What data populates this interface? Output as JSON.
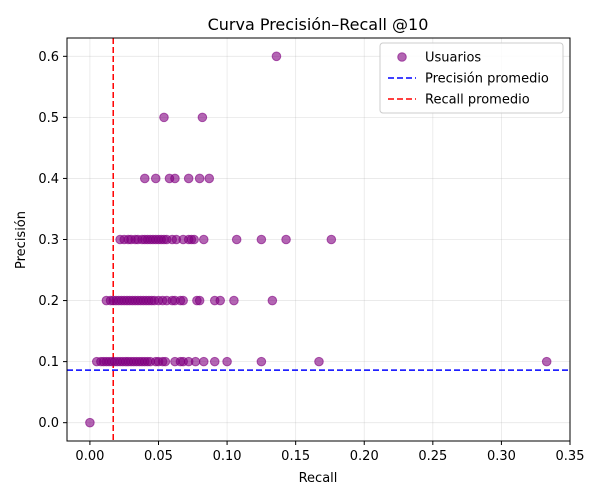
{
  "chart_data": {
    "type": "scatter",
    "title": "Curva Precisión–Recall @10",
    "xlabel": "Recall",
    "ylabel": "Precisión",
    "xlim": [
      -0.0167,
      0.35
    ],
    "ylim": [
      -0.03,
      0.63
    ],
    "xticks": [
      0.0,
      0.05,
      0.1,
      0.15,
      0.2,
      0.25,
      0.3,
      0.35
    ],
    "xtick_labels": [
      "0.00",
      "0.05",
      "0.10",
      "0.15",
      "0.20",
      "0.25",
      "0.30",
      "0.35"
    ],
    "yticks": [
      0.0,
      0.1,
      0.2,
      0.3,
      0.4,
      0.5,
      0.6
    ],
    "ytick_labels": [
      "0.0",
      "0.1",
      "0.2",
      "0.3",
      "0.4",
      "0.5",
      "0.6"
    ],
    "grid": true,
    "legend_position": "top-right",
    "point_color": "#800080",
    "legend": [
      {
        "label": "Usuarios",
        "kind": "marker",
        "color": "#800080"
      },
      {
        "label": "Precisión promedio",
        "kind": "dashed-line",
        "color": "#0000ff"
      },
      {
        "label": "Recall promedio",
        "kind": "dashed-line",
        "color": "#ff0000"
      }
    ],
    "reference_lines": {
      "mean_precision": {
        "value": 0.086,
        "color": "#0000ff"
      },
      "mean_recall": {
        "value": 0.017,
        "color": "#ff0000"
      }
    },
    "series": [
      {
        "name": "Usuarios",
        "points": [
          [
            0.0,
            0.0
          ],
          [
            0.136,
            0.6
          ],
          [
            0.054,
            0.5
          ],
          [
            0.082,
            0.5
          ],
          [
            0.04,
            0.4
          ],
          [
            0.048,
            0.4
          ],
          [
            0.058,
            0.4
          ],
          [
            0.062,
            0.4
          ],
          [
            0.072,
            0.4
          ],
          [
            0.08,
            0.4
          ],
          [
            0.087,
            0.4
          ],
          [
            0.022,
            0.3
          ],
          [
            0.025,
            0.3
          ],
          [
            0.028,
            0.3
          ],
          [
            0.03,
            0.3
          ],
          [
            0.033,
            0.3
          ],
          [
            0.035,
            0.3
          ],
          [
            0.038,
            0.3
          ],
          [
            0.04,
            0.3
          ],
          [
            0.042,
            0.3
          ],
          [
            0.044,
            0.3
          ],
          [
            0.046,
            0.3
          ],
          [
            0.048,
            0.3
          ],
          [
            0.05,
            0.3
          ],
          [
            0.052,
            0.3
          ],
          [
            0.054,
            0.3
          ],
          [
            0.056,
            0.3
          ],
          [
            0.06,
            0.3
          ],
          [
            0.063,
            0.3
          ],
          [
            0.068,
            0.3
          ],
          [
            0.072,
            0.3
          ],
          [
            0.074,
            0.3
          ],
          [
            0.076,
            0.3
          ],
          [
            0.083,
            0.3
          ],
          [
            0.107,
            0.3
          ],
          [
            0.125,
            0.3
          ],
          [
            0.143,
            0.3
          ],
          [
            0.176,
            0.3
          ],
          [
            0.012,
            0.2
          ],
          [
            0.015,
            0.2
          ],
          [
            0.017,
            0.2
          ],
          [
            0.019,
            0.2
          ],
          [
            0.021,
            0.2
          ],
          [
            0.023,
            0.2
          ],
          [
            0.025,
            0.2
          ],
          [
            0.027,
            0.2
          ],
          [
            0.029,
            0.2
          ],
          [
            0.031,
            0.2
          ],
          [
            0.033,
            0.2
          ],
          [
            0.035,
            0.2
          ],
          [
            0.037,
            0.2
          ],
          [
            0.039,
            0.2
          ],
          [
            0.041,
            0.2
          ],
          [
            0.043,
            0.2
          ],
          [
            0.045,
            0.2
          ],
          [
            0.047,
            0.2
          ],
          [
            0.05,
            0.2
          ],
          [
            0.053,
            0.2
          ],
          [
            0.056,
            0.2
          ],
          [
            0.06,
            0.2
          ],
          [
            0.062,
            0.2
          ],
          [
            0.066,
            0.2
          ],
          [
            0.068,
            0.2
          ],
          [
            0.078,
            0.2
          ],
          [
            0.08,
            0.2
          ],
          [
            0.091,
            0.2
          ],
          [
            0.095,
            0.2
          ],
          [
            0.105,
            0.2
          ],
          [
            0.133,
            0.2
          ],
          [
            0.005,
            0.1
          ],
          [
            0.008,
            0.1
          ],
          [
            0.01,
            0.1
          ],
          [
            0.012,
            0.1
          ],
          [
            0.014,
            0.1
          ],
          [
            0.016,
            0.1
          ],
          [
            0.018,
            0.1
          ],
          [
            0.02,
            0.1
          ],
          [
            0.022,
            0.1
          ],
          [
            0.024,
            0.1
          ],
          [
            0.026,
            0.1
          ],
          [
            0.028,
            0.1
          ],
          [
            0.03,
            0.1
          ],
          [
            0.032,
            0.1
          ],
          [
            0.034,
            0.1
          ],
          [
            0.036,
            0.1
          ],
          [
            0.038,
            0.1
          ],
          [
            0.04,
            0.1
          ],
          [
            0.042,
            0.1
          ],
          [
            0.044,
            0.1
          ],
          [
            0.048,
            0.1
          ],
          [
            0.05,
            0.1
          ],
          [
            0.053,
            0.1
          ],
          [
            0.055,
            0.1
          ],
          [
            0.062,
            0.1
          ],
          [
            0.066,
            0.1
          ],
          [
            0.068,
            0.1
          ],
          [
            0.072,
            0.1
          ],
          [
            0.077,
            0.1
          ],
          [
            0.083,
            0.1
          ],
          [
            0.091,
            0.1
          ],
          [
            0.1,
            0.1
          ],
          [
            0.125,
            0.1
          ],
          [
            0.167,
            0.1
          ],
          [
            0.333,
            0.1
          ]
        ]
      }
    ]
  }
}
